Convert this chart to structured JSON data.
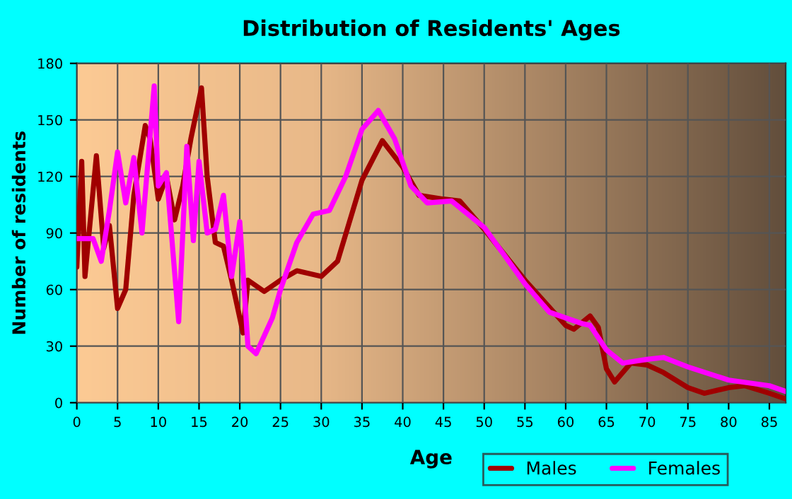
{
  "chart_data": {
    "type": "line",
    "title": "Distribution of Residents' Ages",
    "xlabel": "Age",
    "ylabel": "Number of residents",
    "xlim": [
      0,
      87
    ],
    "xticks": [
      0,
      5,
      10,
      15,
      20,
      25,
      30,
      35,
      40,
      45,
      50,
      55,
      60,
      65,
      70,
      75,
      80,
      85
    ],
    "ylim": [
      0,
      180
    ],
    "yticks": [
      0,
      30,
      60,
      90,
      120,
      150,
      180
    ],
    "grid": true,
    "legend": "bottom right",
    "series": [
      {
        "name": "Males",
        "color": "#a00000",
        "x": [
          0,
          0.6,
          1,
          2.4,
          3.3,
          4,
          5,
          6,
          7,
          8.4,
          9,
          10,
          11,
          12,
          13,
          14,
          15.3,
          16,
          17,
          18,
          19,
          20.4,
          21,
          22,
          23,
          25,
          27,
          30,
          32,
          35,
          37.5,
          40,
          42,
          45,
          47,
          50,
          55,
          60,
          61,
          63,
          64,
          65,
          66,
          68,
          70,
          72,
          75,
          77,
          80,
          82,
          85,
          87
        ],
        "values": [
          72,
          128,
          67,
          131,
          82,
          94,
          50,
          60,
          110,
          147,
          140,
          108,
          120,
          97,
          115,
          140,
          167,
          120,
          85,
          83,
          65,
          37,
          65,
          62,
          59,
          65,
          70,
          67,
          75,
          118,
          139,
          125,
          110,
          108,
          107,
          92,
          65,
          41,
          39,
          46,
          40,
          18,
          11,
          21,
          20,
          16,
          8,
          5,
          8,
          9,
          5,
          2
        ]
      },
      {
        "name": "Females",
        "color": "#ff00ff",
        "x": [
          0,
          2,
          3,
          4,
          5,
          6,
          7,
          8,
          9.5,
          10,
          11,
          12.5,
          13.5,
          14.3,
          15,
          16,
          17,
          18,
          19,
          20,
          21,
          22,
          24,
          25,
          27,
          29,
          31,
          33,
          35,
          37,
          39,
          41,
          43,
          46,
          50,
          55,
          58,
          60,
          62,
          63,
          65,
          67,
          70,
          72,
          75,
          80,
          85,
          87
        ],
        "values": [
          87,
          87,
          75,
          102,
          133,
          106,
          130,
          90,
          168,
          115,
          122,
          43,
          136,
          86,
          128,
          90,
          92,
          110,
          67,
          96,
          30,
          26,
          45,
          60,
          85,
          100,
          102,
          120,
          145,
          155,
          140,
          115,
          106,
          107,
          93,
          63,
          48,
          45,
          42,
          41,
          28,
          21,
          23,
          24,
          19,
          12,
          9,
          6
        ]
      }
    ]
  }
}
